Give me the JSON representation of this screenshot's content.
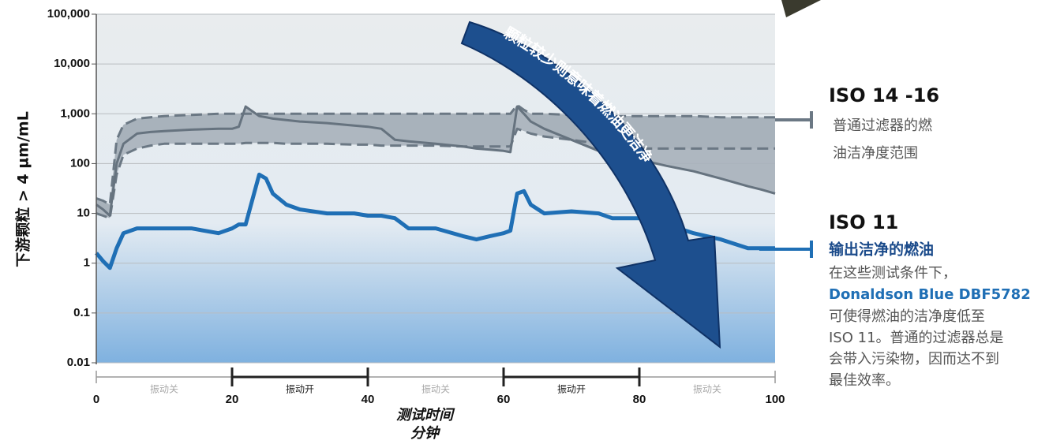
{
  "chart_data": {
    "type": "line",
    "log_scale": true,
    "grid": true,
    "y_label": "下游颗粒 > 4 µm/mL",
    "x_label": "测试时间",
    "x_unit": "分钟",
    "annotation": "颗粒较少则意味着燃油更洁净",
    "xlim": [
      0,
      100
    ],
    "xticks": [
      0,
      20,
      40,
      60,
      80,
      100
    ],
    "ylim": [
      0.01,
      100000
    ],
    "yticks": [
      0.01,
      0.1,
      1,
      10,
      100,
      {
        "value": 1000,
        "label": "1,000"
      },
      {
        "value": 10000,
        "label": "10,000"
      },
      {
        "value": 100000,
        "label": "100,000"
      }
    ],
    "phases": [
      {
        "start": 0,
        "end": 20,
        "label": "振动关",
        "on": false
      },
      {
        "start": 20,
        "end": 40,
        "label": "振动开",
        "on": true
      },
      {
        "start": 40,
        "end": 60,
        "label": "振动关",
        "on": false
      },
      {
        "start": 60,
        "end": 80,
        "label": "振动开",
        "on": true
      },
      {
        "start": 80,
        "end": 100,
        "label": "振动关",
        "on": false
      }
    ],
    "x": [
      0,
      1,
      2,
      3,
      4,
      6,
      8,
      10,
      14,
      18,
      20,
      21,
      22,
      24,
      25,
      26,
      28,
      30,
      34,
      38,
      40,
      42,
      44,
      46,
      50,
      54,
      56,
      58,
      60,
      61,
      62,
      63,
      64,
      66,
      70,
      74,
      76,
      80,
      84,
      88,
      92,
      96,
      98,
      100
    ],
    "series": [
      {
        "color": "#6b7884",
        "style": "dashed",
        "values": [
          20,
          18,
          15,
          300,
          600,
          800,
          850,
          900,
          950,
          1000,
          1000,
          1000,
          1000,
          1000,
          1000,
          1000,
          1000,
          1000,
          1000,
          1000,
          1000,
          1000,
          1000,
          1000,
          1000,
          1000,
          1000,
          1000,
          1000,
          1000,
          1500,
          1200,
          1000,
          1000,
          950,
          950,
          900,
          900,
          900,
          900,
          850,
          850,
          850,
          850
        ]
      },
      {
        "color": "#6b7884",
        "style": "dashed",
        "values": [
          10,
          9,
          8,
          60,
          150,
          200,
          230,
          250,
          250,
          250,
          250,
          250,
          260,
          260,
          260,
          260,
          250,
          250,
          250,
          240,
          240,
          230,
          230,
          230,
          230,
          220,
          220,
          220,
          220,
          220,
          500,
          450,
          400,
          350,
          300,
          250,
          230,
          200,
          200,
          200,
          200,
          200,
          200,
          200
        ]
      },
      {
        "color": "#66737f",
        "style": "solid",
        "values": [
          15,
          12,
          9,
          100,
          250,
          400,
          430,
          450,
          480,
          500,
          500,
          550,
          1400,
          900,
          850,
          800,
          750,
          700,
          650,
          580,
          550,
          500,
          300,
          280,
          250,
          220,
          200,
          190,
          180,
          170,
          1400,
          1000,
          700,
          500,
          300,
          180,
          150,
          120,
          90,
          70,
          50,
          35,
          30,
          25
        ]
      },
      {
        "color": "#1f6fb5",
        "style": "solid",
        "values": [
          1.6,
          1.1,
          0.8,
          2,
          4,
          5,
          5,
          5,
          5,
          4,
          5,
          6,
          6,
          60,
          50,
          25,
          15,
          12,
          10,
          10,
          9,
          9,
          8,
          5,
          5,
          3.5,
          3,
          3.5,
          4,
          4.5,
          25,
          28,
          15,
          10,
          11,
          10,
          8,
          8,
          6,
          4,
          3,
          2,
          2,
          2
        ]
      }
    ],
    "legend": [
      {
        "title": "ISO 14 -16",
        "lines": [
          "普通过滤器的燃",
          "油洁净度范围"
        ],
        "color": "#6b7884"
      },
      {
        "title": "ISO 11",
        "subtitle": "输出洁净的燃油",
        "lines": [
          "在这些测试条件下，",
          "Donaldson Blue DBF5782",
          "可使得燃油的洁净度低至",
          "ISO 11。普通的过滤器总是",
          "会带入污染物，因而达不到",
          "最佳效率。"
        ],
        "color": "#1f6fb5"
      }
    ]
  }
}
